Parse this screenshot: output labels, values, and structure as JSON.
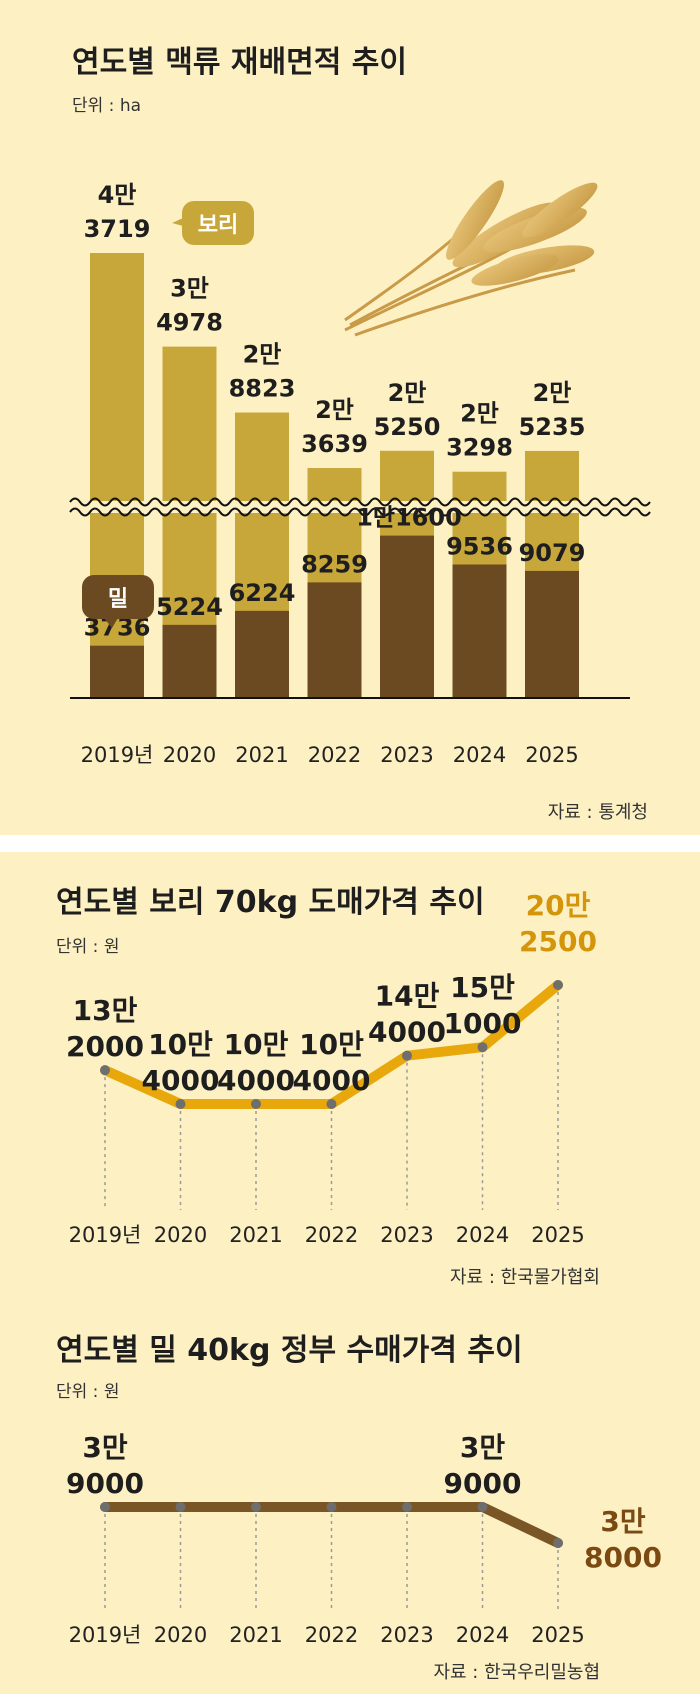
{
  "chart_data": [
    {
      "type": "bar",
      "title": "연도별 맥류 재배면적 추이",
      "unit": "단위 : ha",
      "source": "자료 : 통계청",
      "categories": [
        "2019년",
        "2020",
        "2021",
        "2022",
        "2023",
        "2024",
        "2025"
      ],
      "series": [
        {
          "name": "보리",
          "values": [
            43719,
            34978,
            28823,
            23639,
            25250,
            23298,
            25235
          ],
          "labels": [
            [
              "4만",
              "3719"
            ],
            [
              "3만",
              "4978"
            ],
            [
              "2만",
              "8823"
            ],
            [
              "2만",
              "3639"
            ],
            [
              "2만",
              "5250"
            ],
            [
              "2만",
              "3298"
            ],
            [
              "2만",
              "5235"
            ]
          ],
          "color": "#c8a73a"
        },
        {
          "name": "밀",
          "values": [
            3736,
            5224,
            6224,
            8259,
            11600,
            9536,
            9079
          ],
          "labels": [
            "3736",
            "5224",
            "6224",
            "8259",
            "1만1600",
            "9536",
            "9079"
          ],
          "color": "#6b4a22"
        }
      ],
      "axis_break": true
    },
    {
      "type": "line",
      "title": "연도별 보리 70kg 도매가격 추이",
      "unit": "단위 : 원",
      "source": "자료 : 한국물가협회",
      "categories": [
        "2019년",
        "2020",
        "2021",
        "2022",
        "2023",
        "2024",
        "2025"
      ],
      "values": [
        132000,
        104000,
        104000,
        104000,
        144000,
        151000,
        202500
      ],
      "labels": [
        [
          "13만",
          "2000"
        ],
        [
          "10만",
          "4000"
        ],
        [
          "10만",
          "4000"
        ],
        [
          "10만",
          "4000"
        ],
        [
          "14만",
          "4000"
        ],
        [
          "15만",
          "1000"
        ],
        [
          "20만",
          "2500"
        ]
      ],
      "color": "#e8a80c",
      "highlight_color": "#d4950a"
    },
    {
      "type": "line",
      "title": "연도별 밀 40kg 정부 수매가격 추이",
      "unit": "단위 : 원",
      "source": "자료 : 한국우리밀농협",
      "categories": [
        "2019년",
        "2020",
        "2021",
        "2022",
        "2023",
        "2024",
        "2025"
      ],
      "values": [
        39000,
        39000,
        39000,
        39000,
        39000,
        39000,
        38000
      ],
      "labels": [
        [
          "3만",
          "9000"
        ],
        [
          "3만",
          "9000"
        ],
        [
          "3만",
          "8000"
        ]
      ],
      "label_indices": [
        0,
        5,
        6
      ],
      "color": "#7a5526",
      "highlight_color": "#7a4a12"
    }
  ]
}
